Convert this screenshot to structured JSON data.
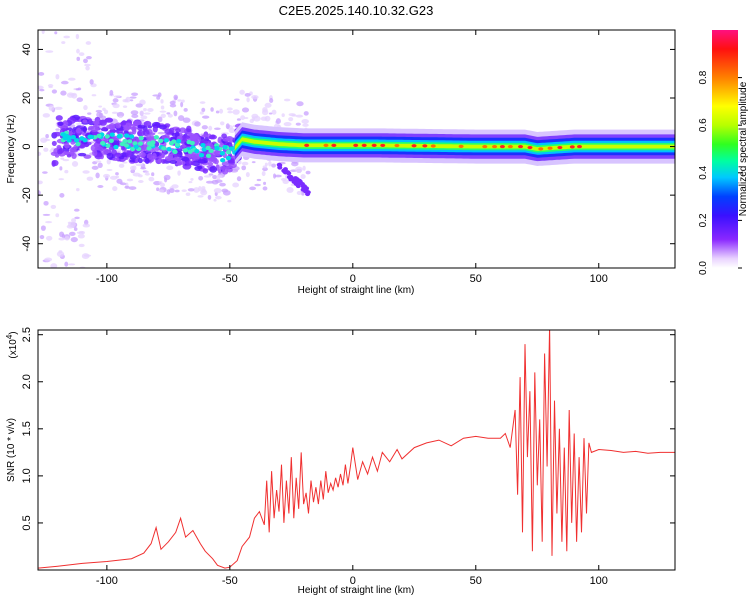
{
  "title": "C2E5.2025.140.10.32.G23",
  "chart_data": [
    {
      "type": "heatmap",
      "title": "C2E5.2025.140.10.32.G23",
      "xlabel": "Height of straight line (km)",
      "ylabel": "Frequency (Hz)",
      "xlim": [
        -128,
        131
      ],
      "ylim": [
        -50,
        48
      ],
      "x_ticks": [
        -100,
        -50,
        0,
        50,
        100
      ],
      "x_tick_labels": [
        "-100",
        "-50",
        "0",
        "50",
        "100"
      ],
      "y_ticks": [
        -40,
        -20,
        0,
        20,
        40
      ],
      "y_tick_labels": [
        "-40",
        "-20",
        "0",
        "20",
        "40"
      ],
      "colorbar": {
        "label": "Normalized spectral amplitude",
        "range": [
          0,
          1
        ],
        "ticks": [
          0.0,
          0.2,
          0.4,
          0.6,
          0.8
        ],
        "tick_labels": [
          "0.0",
          "0.2",
          "0.4",
          "0.6",
          "0.8"
        ],
        "colormap": [
          "#ffffff",
          "#e9d2ff",
          "#8a28ff",
          "#3a10ff",
          "#0040ff",
          "#00c8ff",
          "#00ffa0",
          "#30ff20",
          "#b8ff00",
          "#ffff00",
          "#ff8000",
          "#ff1010",
          "#ff1080"
        ]
      },
      "ridge": {
        "description_free": true,
        "center_freq_hz": [
          [
            -120,
            4
          ],
          [
            -110,
            4
          ],
          [
            -100,
            3
          ],
          [
            -90,
            2
          ],
          [
            -80,
            2
          ],
          [
            -70,
            0
          ],
          [
            -60,
            -2
          ],
          [
            -50,
            -3
          ],
          [
            -45,
            3
          ],
          [
            -40,
            2
          ],
          [
            -30,
            1
          ],
          [
            -20,
            0.5
          ],
          [
            0,
            0.5
          ],
          [
            10,
            0.5
          ],
          [
            50,
            0
          ],
          [
            70,
            0
          ],
          [
            75,
            -1
          ],
          [
            90,
            0
          ],
          [
            131,
            0
          ]
        ]
      }
    },
    {
      "type": "line",
      "xlabel": "Height of straight line (km)",
      "ylabel": "SNR (10 * v/v)",
      "y_multiplier_label": "(x10",
      "y_multiplier_exp": "4",
      "y_multiplier_close": ")",
      "xlim": [
        -128,
        131
      ],
      "ylim": [
        0,
        2.55
      ],
      "x_ticks": [
        -100,
        -50,
        0,
        50,
        100
      ],
      "x_tick_labels": [
        "-100",
        "-50",
        "0",
        "50",
        "100"
      ],
      "y_ticks": [
        0.5,
        1.0,
        1.5,
        2.0,
        2.5
      ],
      "y_tick_labels": [
        "0.5",
        "1.0",
        "1.5",
        "2.0",
        "2.5"
      ],
      "color": "#f03030",
      "series": [
        {
          "x": [
            -128,
            -120,
            -110,
            -100,
            -90,
            -85,
            -82,
            -80,
            -78,
            -75,
            -72,
            -70,
            -68,
            -65,
            -62,
            -60,
            -57,
            -55,
            -52,
            -50,
            -47,
            -45,
            -42,
            -40,
            -38,
            -36,
            -35,
            -34,
            -33,
            -32,
            -31,
            -30,
            -29,
            -28,
            -27,
            -26,
            -25,
            -24,
            -23,
            -22,
            -21,
            -20,
            -19,
            -18,
            -17,
            -16,
            -15,
            -14,
            -13,
            -12,
            -11,
            -10,
            -9,
            -8,
            -7,
            -6,
            -5,
            -4,
            -3,
            -2,
            -1,
            0,
            2,
            4,
            6,
            8,
            10,
            12,
            15,
            18,
            20,
            25,
            30,
            35,
            40,
            45,
            50,
            55,
            60,
            62,
            64,
            66,
            67,
            68,
            69,
            70,
            71,
            72,
            73,
            74,
            75,
            76,
            77,
            78,
            79,
            80,
            81,
            82,
            83,
            84,
            85,
            86,
            87,
            88,
            89,
            90,
            91,
            92,
            93,
            94,
            95,
            96,
            97,
            100,
            105,
            110,
            115,
            120,
            125,
            131
          ],
          "y": [
            0.02,
            0.04,
            0.07,
            0.09,
            0.12,
            0.18,
            0.28,
            0.45,
            0.22,
            0.3,
            0.4,
            0.55,
            0.35,
            0.42,
            0.28,
            0.2,
            0.12,
            0.05,
            0.02,
            0.03,
            0.1,
            0.25,
            0.35,
            0.55,
            0.62,
            0.48,
            0.95,
            0.4,
            1.05,
            0.55,
            0.85,
            0.62,
            1.12,
            0.5,
            0.95,
            0.6,
            1.2,
            0.55,
            0.98,
            0.65,
            1.25,
            0.7,
            0.82,
            0.6,
            0.95,
            0.72,
            0.88,
            0.7,
            0.95,
            0.75,
            1.05,
            0.82,
            0.92,
            0.85,
            0.98,
            0.88,
            1.02,
            0.9,
            1.12,
            0.92,
            1.1,
            1.3,
            0.96,
            1.15,
            1.02,
            1.2,
            1.05,
            1.25,
            1.15,
            1.28,
            1.18,
            1.3,
            1.35,
            1.38,
            1.32,
            1.4,
            1.42,
            1.4,
            1.4,
            1.45,
            1.3,
            1.7,
            0.8,
            2.05,
            0.4,
            2.4,
            1.2,
            1.9,
            0.2,
            2.1,
            0.9,
            1.6,
            0.3,
            2.3,
            1.1,
            2.6,
            0.15,
            1.8,
            0.6,
            1.5,
            0.3,
            1.3,
            0.2,
            1.7,
            0.5,
            1.45,
            0.3,
            1.2,
            0.4,
            1.4,
            0.6,
            1.35,
            1.25,
            1.28,
            1.27,
            1.25,
            1.26,
            1.24,
            1.25,
            1.25
          ]
        }
      ]
    }
  ]
}
